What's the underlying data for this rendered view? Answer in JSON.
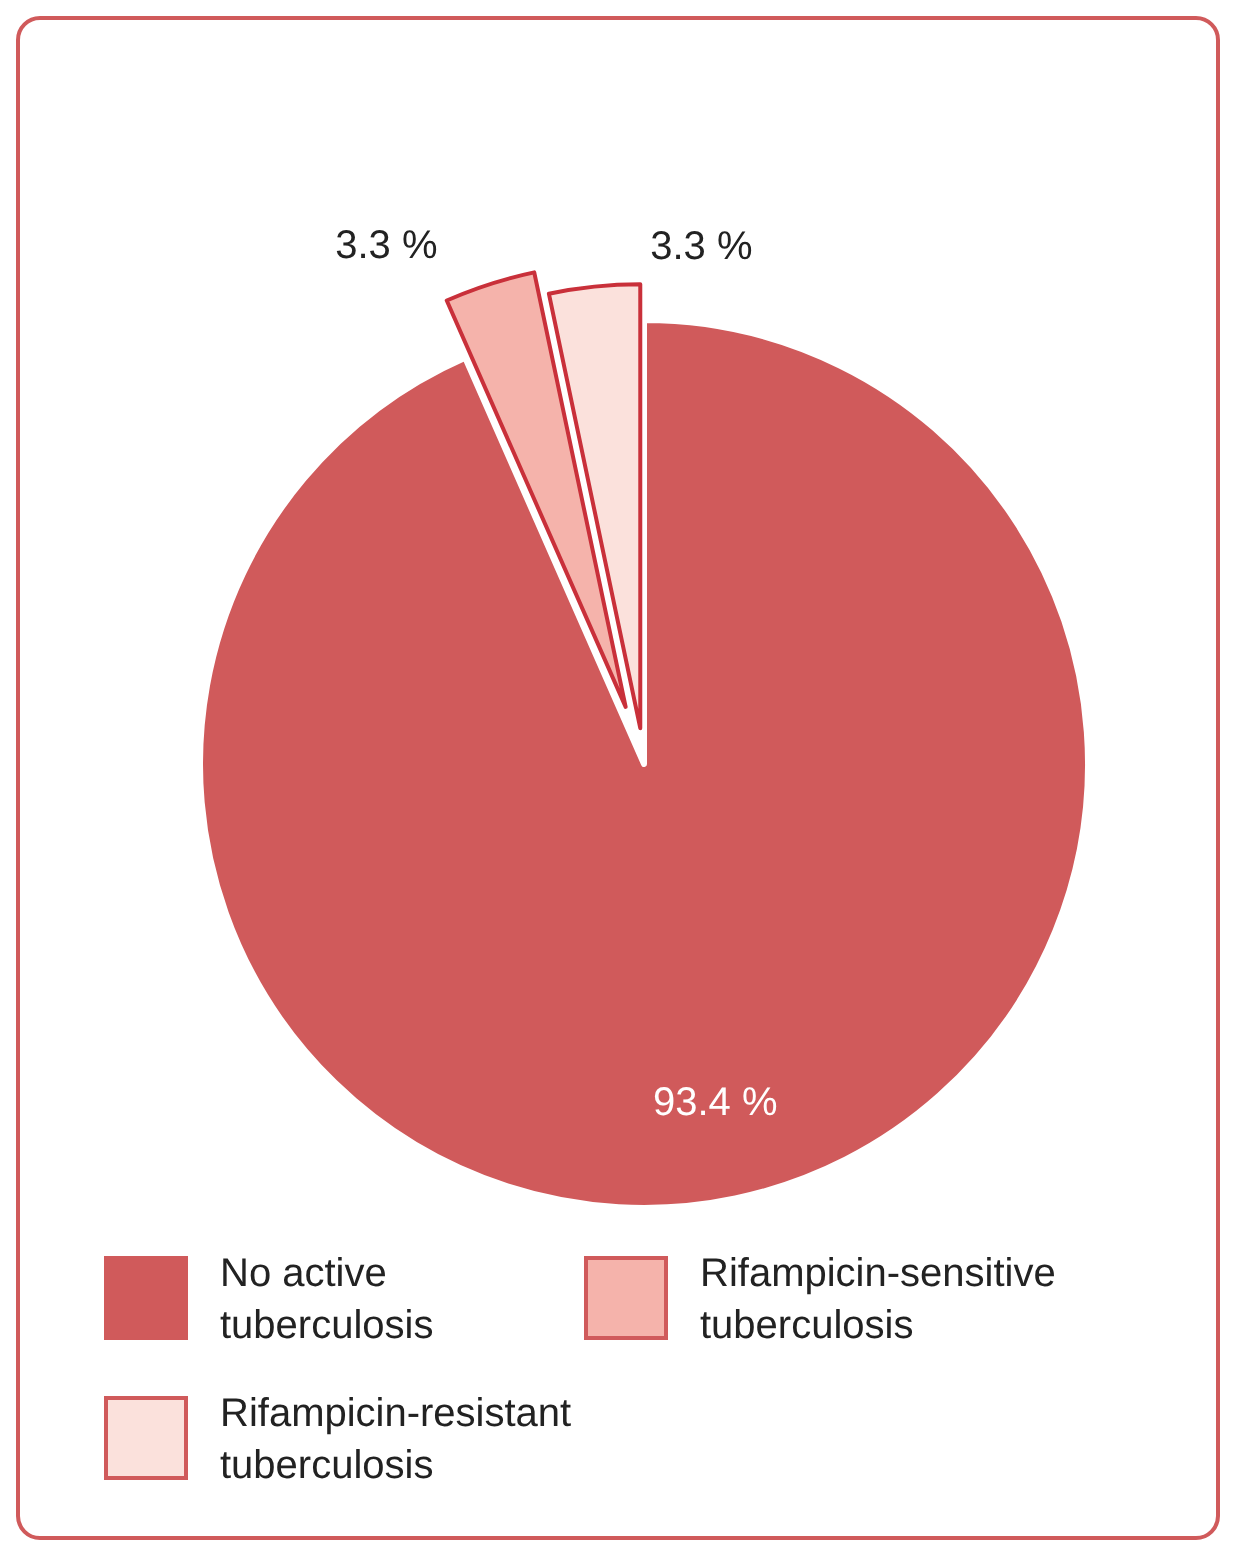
{
  "chart_data": {
    "type": "pie",
    "categories": [
      "No active tuberculosis",
      "Rifampicin-sensitive tuberculosis",
      "Rifampicin-resistant tuberculosis"
    ],
    "values": [
      93.4,
      3.3,
      3.3
    ],
    "value_labels": [
      "93.4 %",
      "3.3 %",
      "3.3 %"
    ],
    "colors": [
      "#d05a5b",
      "#f5b3ab",
      "#fbe1dc"
    ],
    "legend": "bottom"
  }
}
